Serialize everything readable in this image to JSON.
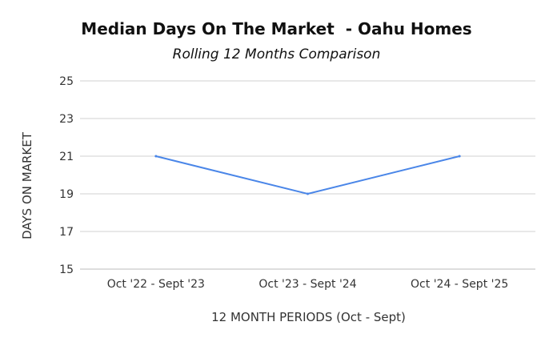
{
  "chart_data": {
    "type": "line",
    "title": "Median Days On The Market  - Oahu Homes",
    "subtitle": "Rolling 12 Months Comparison",
    "xlabel": "12 MONTH PERIODS (Oct - Sept)",
    "ylabel": "DAYS ON MARKET",
    "categories": [
      "Oct '22 - Sept '23",
      "Oct '23 - Sept '24",
      "Oct '24 - Sept '25"
    ],
    "series": [
      {
        "values": [
          21,
          19,
          21
        ],
        "color": "#4a86e8"
      }
    ],
    "ylim": [
      15,
      25
    ],
    "yticks": [
      "25",
      "23",
      "21",
      "19",
      "17",
      "15"
    ],
    "grid": true,
    "legend": "none"
  }
}
